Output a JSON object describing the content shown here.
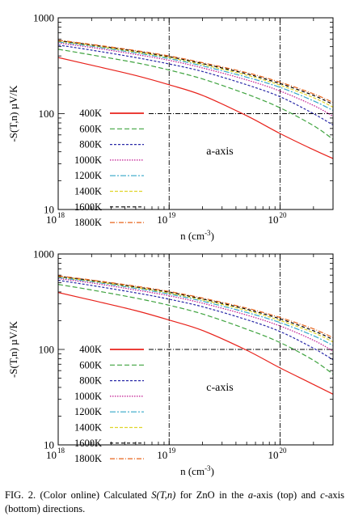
{
  "caption": {
    "prefix": "FIG. 2. (Color online) Calculated ",
    "formula": "S(T,n)",
    "middle1": " for ZnO in the ",
    "a_label": "a",
    "middle2": "-axis (top) and ",
    "c_label": "c",
    "suffix": "-axis (bottom) directions."
  },
  "chart_data": [
    {
      "type": "line",
      "panel": "top",
      "annotation": "a-axis",
      "xlabel": "n (cm",
      "xlabel_exp": "-3",
      "xlabel_close": ")",
      "ylabel": "-S(T,n) µV/K",
      "xscale": "log",
      "yscale": "log",
      "xlim": [
        1e+18,
        3e+20
      ],
      "ylim": [
        10,
        1000
      ],
      "x_ticks": [
        {
          "base": "10",
          "exp": "18",
          "value": 1e+18
        },
        {
          "base": "10",
          "exp": "19",
          "value": 1e+19
        },
        {
          "base": "10",
          "exp": "20",
          "value": 1e+20
        }
      ],
      "y_ticks": [
        {
          "label": "10",
          "value": 10
        },
        {
          "label": "100",
          "value": 100
        },
        {
          "label": "1000",
          "value": 1000
        }
      ],
      "reference_lines": {
        "x": [
          1e+19,
          1e+20
        ],
        "y": [
          100
        ]
      },
      "legend_position": "bottom-left",
      "x": [
        1e+18,
        2e+18,
        5e+18,
        1e+19,
        2e+19,
        5e+19,
        1e+20,
        2e+20,
        3e+20
      ],
      "series": [
        {
          "name": "400K",
          "color": "#e8221b",
          "dash": "",
          "values": [
            385,
            320,
            250,
            200,
            155,
            95,
            62,
            42,
            34
          ]
        },
        {
          "name": "600K",
          "color": "#3fa33f",
          "dash": "6,3",
          "values": [
            470,
            410,
            340,
            285,
            230,
            160,
            115,
            75,
            54
          ]
        },
        {
          "name": "800K",
          "color": "#2929a8",
          "dash": "3,2",
          "values": [
            520,
            460,
            385,
            330,
            275,
            200,
            150,
            100,
            76
          ]
        },
        {
          "name": "1000K",
          "color": "#c0158f",
          "dash": "1.5,1.5",
          "values": [
            545,
            490,
            415,
            360,
            300,
            225,
            172,
            122,
            94
          ]
        },
        {
          "name": "1200K",
          "color": "#35a7c9",
          "dash": "7,2,2,2",
          "values": [
            560,
            505,
            430,
            375,
            315,
            240,
            188,
            136,
            108
          ]
        },
        {
          "name": "1400K",
          "color": "#e0d52a",
          "dash": "4,2",
          "values": [
            570,
            515,
            440,
            385,
            325,
            252,
            198,
            147,
            117
          ]
        },
        {
          "name": "1600K",
          "color": "#000000",
          "dash": "4,3",
          "values": [
            578,
            522,
            448,
            393,
            333,
            260,
            206,
            155,
            125
          ]
        },
        {
          "name": "1800K",
          "color": "#e8641b",
          "dash": "6,2,1,2",
          "values": [
            584,
            528,
            455,
            400,
            340,
            268,
            213,
            161,
            131
          ]
        }
      ]
    },
    {
      "type": "line",
      "panel": "bottom",
      "annotation": "c-axis",
      "xlabel": "n (cm",
      "xlabel_exp": "-3",
      "xlabel_close": ")",
      "ylabel": "-S(T,n) µV/K",
      "xscale": "log",
      "yscale": "log",
      "xlim": [
        1e+18,
        3e+20
      ],
      "ylim": [
        10,
        1000
      ],
      "x_ticks": [
        {
          "base": "10",
          "exp": "18",
          "value": 1e+18
        },
        {
          "base": "10",
          "exp": "19",
          "value": 1e+19
        },
        {
          "base": "10",
          "exp": "20",
          "value": 1e+20
        }
      ],
      "y_ticks": [
        {
          "label": "10",
          "value": 10
        },
        {
          "label": "100",
          "value": 100
        },
        {
          "label": "1000",
          "value": 1000
        }
      ],
      "reference_lines": {
        "x": [
          1e+19,
          1e+20
        ],
        "y": [
          100
        ]
      },
      "legend_position": "bottom-left",
      "x": [
        1e+18,
        2e+18,
        5e+18,
        1e+19,
        2e+19,
        5e+19,
        1e+20,
        2e+20,
        3e+20
      ],
      "series": [
        {
          "name": "400K",
          "color": "#e8221b",
          "dash": "",
          "values": [
            395,
            328,
            255,
            203,
            158,
            98,
            64,
            43,
            34
          ]
        },
        {
          "name": "600K",
          "color": "#3fa33f",
          "dash": "6,3",
          "values": [
            480,
            420,
            345,
            290,
            235,
            163,
            118,
            77,
            55
          ]
        },
        {
          "name": "800K",
          "color": "#2929a8",
          "dash": "3,2",
          "values": [
            530,
            468,
            392,
            336,
            280,
            205,
            154,
            103,
            78
          ]
        },
        {
          "name": "1000K",
          "color": "#c0158f",
          "dash": "1.5,1.5",
          "values": [
            553,
            497,
            420,
            365,
            305,
            229,
            176,
            125,
            96
          ]
        },
        {
          "name": "1200K",
          "color": "#35a7c9",
          "dash": "7,2,2,2",
          "values": [
            567,
            512,
            436,
            380,
            320,
            244,
            191,
            139,
            110
          ]
        },
        {
          "name": "1400K",
          "color": "#e0d52a",
          "dash": "4,2",
          "values": [
            576,
            521,
            446,
            390,
            330,
            256,
            201,
            150,
            120
          ]
        },
        {
          "name": "1600K",
          "color": "#000000",
          "dash": "4,3",
          "values": [
            583,
            528,
            453,
            398,
            338,
            264,
            209,
            157,
            127
          ]
        },
        {
          "name": "1800K",
          "color": "#e8641b",
          "dash": "6,2,1,2",
          "values": [
            590,
            534,
            460,
            405,
            345,
            271,
            216,
            164,
            133
          ]
        }
      ]
    }
  ]
}
